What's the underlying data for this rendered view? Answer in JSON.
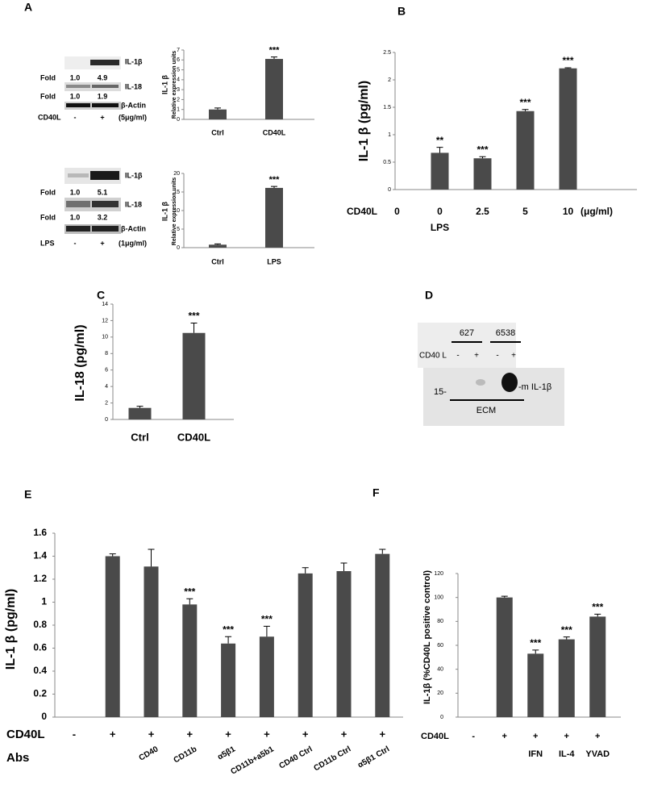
{
  "panel_letters": [
    "A",
    "B",
    "C",
    "D",
    "E",
    "F"
  ],
  "blot_a1": {
    "band_labels": [
      "IL-1β",
      "IL-18",
      "β-Actin"
    ],
    "fold_label": "Fold",
    "folds": [
      [
        "1.0",
        "4.9"
      ],
      [
        "1.0",
        "1.9"
      ]
    ],
    "treatment": "CD40L",
    "lanes": [
      "-",
      "+"
    ],
    "dose": "(5μg/ml)"
  },
  "blot_a2": {
    "band_labels": [
      "IL-1β",
      "IL-18",
      "β-Actin"
    ],
    "fold_label": "Fold",
    "folds": [
      [
        "1.0",
        "5.1"
      ],
      [
        "1.0",
        "3.2"
      ]
    ],
    "treatment": "LPS",
    "lanes": [
      "-",
      "+"
    ],
    "dose": "(1μg/ml)"
  },
  "blot_d": {
    "groups": [
      "627",
      "6538"
    ],
    "treatment": "CD40 L",
    "lanes": [
      "-",
      "+",
      "-",
      "+"
    ],
    "marker": "15-",
    "band": "-m IL-1β",
    "fraction": "ECM"
  },
  "chart_data": [
    {
      "type": "bar",
      "ylabel": "IL-1 β",
      "ylabel2": "Relative expression units",
      "categories": [
        "Ctrl",
        "CD40L"
      ],
      "values": [
        1.0,
        6.1
      ],
      "errors": [
        0.15,
        0.2
      ],
      "annotations": [
        null,
        "***"
      ],
      "color": "#4a4a4a",
      "ylim": [
        0,
        7
      ],
      "yticks": [
        0,
        1,
        2,
        3,
        4,
        5,
        6,
        7
      ]
    },
    {
      "type": "bar",
      "ylabel": "IL-1 β",
      "ylabel2": "Relative expression units",
      "categories": [
        "Ctrl",
        "LPS"
      ],
      "values": [
        0.8,
        16.1
      ],
      "errors": [
        0.2,
        0.4
      ],
      "annotations": [
        null,
        "***"
      ],
      "color": "#4a4a4a",
      "ylim": [
        0,
        20
      ],
      "yticks": [
        0,
        5,
        10,
        15,
        20
      ]
    },
    {
      "type": "bar",
      "ylabel": "IL-1 β (pg/ml)",
      "row_labels": [
        "CD40L"
      ],
      "unit": "(μg/ml)",
      "categories": [
        "0",
        "0",
        "2.5",
        "5",
        "10"
      ],
      "sublabels": [
        null,
        "LPS",
        null,
        null,
        null
      ],
      "values": [
        null,
        0.67,
        0.57,
        1.43,
        2.21
      ],
      "errors": [
        null,
        0.1,
        0.03,
        0.03,
        0.01
      ],
      "annotations": [
        null,
        "**",
        "***",
        "***",
        "***"
      ],
      "color": "#4a4a4a",
      "ylim": [
        0,
        2.5
      ],
      "yticks": [
        0,
        0.5,
        1,
        1.5,
        2,
        2.5
      ]
    },
    {
      "type": "bar",
      "ylabel": "IL-18 (pg/ml)",
      "categories": [
        "Ctrl",
        "CD40L"
      ],
      "values": [
        1.4,
        10.5
      ],
      "errors": [
        0.2,
        1.2
      ],
      "annotations": [
        null,
        "***"
      ],
      "color": "#4a4a4a",
      "ylim": [
        0,
        14
      ],
      "yticks": [
        0,
        2,
        4,
        6,
        8,
        10,
        12,
        14
      ]
    },
    {
      "type": "bar",
      "ylabel": "IL-1 β (pg/ml)",
      "row_labels": [
        "CD40L",
        "Abs"
      ],
      "categories": [
        "-",
        "+",
        "+",
        "+",
        "+",
        "+",
        "+",
        "+",
        "+"
      ],
      "sublabels": [
        null,
        null,
        "CD40",
        "CD11b",
        "α5β1",
        "CD11b+a5b1",
        "CD40 Ctrl",
        "CD11b Ctrl",
        "α5β1 Ctrl"
      ],
      "values": [
        null,
        1.4,
        1.31,
        0.98,
        0.64,
        0.7,
        1.25,
        1.27,
        1.42
      ],
      "errors": [
        null,
        0.02,
        0.15,
        0.05,
        0.06,
        0.09,
        0.05,
        0.07,
        0.04
      ],
      "annotations": [
        null,
        null,
        null,
        "***",
        "***",
        "***",
        null,
        null,
        null
      ],
      "color": "#4a4a4a",
      "ylim": [
        0,
        1.6
      ],
      "yticks": [
        0,
        0.2,
        0.4,
        0.6,
        0.8,
        1,
        1.2,
        1.4,
        1.6
      ]
    },
    {
      "type": "bar",
      "ylabel": "IL-1β (%CD40L positive control)",
      "row_labels": [
        "CD40L"
      ],
      "categories": [
        "-",
        "+",
        "+",
        "+",
        "+"
      ],
      "sublabels": [
        null,
        null,
        "IFN",
        "IL-4",
        "YVAD"
      ],
      "values": [
        null,
        100,
        53,
        65,
        84
      ],
      "errors": [
        null,
        1,
        3,
        2,
        2
      ],
      "annotations": [
        null,
        null,
        "***",
        "***",
        "***"
      ],
      "color": "#4a4a4a",
      "ylim": [
        0,
        120
      ],
      "yticks": [
        0,
        20,
        40,
        60,
        80,
        100,
        120
      ]
    }
  ]
}
